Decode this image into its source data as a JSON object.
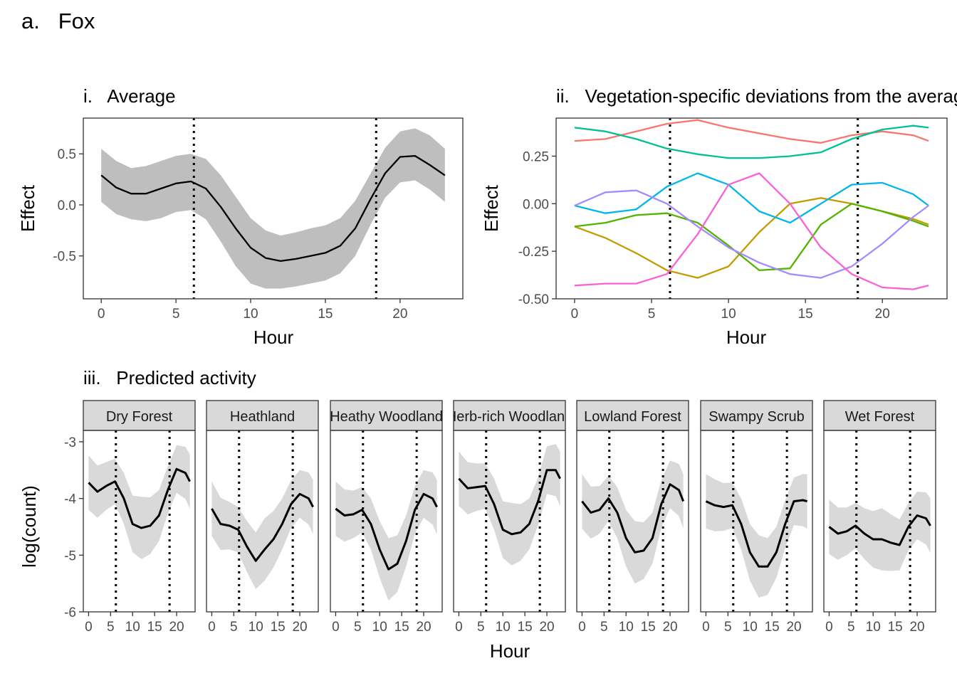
{
  "figure": {
    "title": "a.   Fox"
  },
  "colors": {
    "line": "#000000",
    "ribbon_main": "#bebebe",
    "ribbon_facet": "#d9d9d9",
    "strip_fill": "#d9d9d9",
    "frame": "#333333",
    "vline": "#000000"
  },
  "chart_data": [
    {
      "id": "average",
      "type": "line",
      "title": "i.   Average",
      "xlabel": "Hour",
      "ylabel": "Effect",
      "xlim": [
        -1.2,
        24.2
      ],
      "ylim": [
        -0.92,
        0.85
      ],
      "xticks": [
        0,
        5,
        10,
        15,
        20
      ],
      "xtick_labels": [
        "0",
        "5",
        "10",
        "15",
        "20"
      ],
      "yticks": [
        0.5,
        0.0,
        -0.5
      ],
      "ytick_labels": [
        "0.5",
        "0.0",
        "-0.5"
      ],
      "vlines": [
        6.2,
        18.4
      ],
      "x": [
        0,
        1,
        2,
        3,
        4,
        5,
        6,
        7,
        8,
        9,
        10,
        11,
        12,
        13,
        14,
        15,
        16,
        17,
        18,
        19,
        20,
        21,
        22,
        23
      ],
      "y": [
        0.29,
        0.17,
        0.11,
        0.11,
        0.16,
        0.21,
        0.23,
        0.16,
        -0.02,
        -0.23,
        -0.42,
        -0.52,
        -0.55,
        -0.53,
        -0.5,
        -0.47,
        -0.4,
        -0.23,
        0.05,
        0.31,
        0.47,
        0.48,
        0.39,
        0.29
      ],
      "lower": [
        0.03,
        -0.09,
        -0.14,
        -0.16,
        -0.13,
        -0.07,
        -0.05,
        -0.14,
        -0.36,
        -0.6,
        -0.77,
        -0.82,
        -0.82,
        -0.8,
        -0.77,
        -0.74,
        -0.67,
        -0.5,
        -0.2,
        0.07,
        0.22,
        0.24,
        0.15,
        0.03
      ],
      "upper": [
        0.55,
        0.43,
        0.36,
        0.38,
        0.43,
        0.48,
        0.5,
        0.45,
        0.29,
        0.08,
        -0.13,
        -0.25,
        -0.3,
        -0.27,
        -0.23,
        -0.2,
        -0.13,
        0.04,
        0.3,
        0.56,
        0.72,
        0.75,
        0.68,
        0.55
      ]
    },
    {
      "id": "deviations",
      "type": "line",
      "title": "ii.   Vegetation-specific deviations from the average",
      "xlabel": "Hour",
      "ylabel": "Effect",
      "xlim": [
        -1.2,
        24.2
      ],
      "ylim": [
        -0.5,
        0.45
      ],
      "xticks": [
        0,
        5,
        10,
        15,
        20
      ],
      "xtick_labels": [
        "0",
        "5",
        "10",
        "15",
        "20"
      ],
      "yticks": [
        0.25,
        0.0,
        -0.25,
        -0.5
      ],
      "ytick_labels": [
        "0.25",
        "0.00",
        "-0.25",
        "-0.50"
      ],
      "vlines": [
        6.2,
        18.4
      ],
      "x": [
        0,
        2,
        4,
        6,
        8,
        10,
        12,
        14,
        16,
        18,
        20,
        22,
        23
      ],
      "series": [
        {
          "color": "#f8766d",
          "values": [
            0.33,
            0.34,
            0.38,
            0.42,
            0.44,
            0.4,
            0.37,
            0.34,
            0.32,
            0.36,
            0.38,
            0.36,
            0.33
          ]
        },
        {
          "color": "#c49a00",
          "values": [
            -0.12,
            -0.18,
            -0.26,
            -0.35,
            -0.39,
            -0.33,
            -0.15,
            0.0,
            0.03,
            0.0,
            -0.04,
            -0.08,
            -0.11
          ]
        },
        {
          "color": "#53b400",
          "values": [
            -0.12,
            -0.1,
            -0.06,
            -0.05,
            -0.1,
            -0.22,
            -0.35,
            -0.34,
            -0.11,
            0.0,
            -0.04,
            -0.09,
            -0.12
          ]
        },
        {
          "color": "#00c094",
          "values": [
            0.4,
            0.38,
            0.34,
            0.29,
            0.26,
            0.24,
            0.24,
            0.25,
            0.27,
            0.34,
            0.39,
            0.41,
            0.4
          ]
        },
        {
          "color": "#00b6eb",
          "values": [
            -0.01,
            -0.05,
            -0.03,
            0.09,
            0.16,
            0.1,
            -0.04,
            -0.1,
            0.0,
            0.1,
            0.11,
            0.05,
            -0.01
          ]
        },
        {
          "color": "#a58aff",
          "values": [
            -0.01,
            0.06,
            0.07,
            0.0,
            -0.12,
            -0.23,
            -0.31,
            -0.37,
            -0.39,
            -0.33,
            -0.21,
            -0.07,
            -0.01
          ]
        },
        {
          "color": "#fb61d7",
          "values": [
            -0.43,
            -0.42,
            -0.42,
            -0.37,
            -0.16,
            0.1,
            0.16,
            0.0,
            -0.23,
            -0.37,
            -0.44,
            -0.45,
            -0.43
          ]
        }
      ]
    },
    {
      "id": "predicted",
      "type": "line",
      "title": "iii.   Predicted activity",
      "xlabel": "Hour",
      "ylabel": "log(count)",
      "xlim": [
        -1.2,
        24.2
      ],
      "ylim": [
        -6.0,
        -2.8
      ],
      "xticks": [
        0,
        5,
        10,
        15,
        20
      ],
      "xtick_labels": [
        "0",
        "5",
        "10",
        "15",
        "20"
      ],
      "yticks": [
        -3,
        -4,
        -5,
        -6
      ],
      "ytick_labels": [
        "-3",
        "-4",
        "-5",
        "-6"
      ],
      "vlines": [
        6.2,
        18.4
      ],
      "x": [
        0,
        2,
        4,
        6,
        8,
        10,
        12,
        14,
        16,
        18,
        20,
        22,
        23
      ],
      "band_halfwidth": [
        0.48,
        0.46,
        0.42,
        0.4,
        0.45,
        0.5,
        0.55,
        0.5,
        0.45,
        0.42,
        0.42,
        0.46,
        0.48
      ],
      "facets": [
        {
          "label": "Dry Forest",
          "values": [
            -3.72,
            -3.88,
            -3.78,
            -3.7,
            -4.0,
            -4.45,
            -4.52,
            -4.48,
            -4.3,
            -3.85,
            -3.48,
            -3.55,
            -3.7
          ]
        },
        {
          "label": "Heathland",
          "values": [
            -4.18,
            -4.45,
            -4.48,
            -4.55,
            -4.85,
            -5.1,
            -4.9,
            -4.72,
            -4.45,
            -4.1,
            -3.92,
            -4.0,
            -4.15
          ]
        },
        {
          "label": "Heathy Woodland",
          "values": [
            -4.18,
            -4.3,
            -4.28,
            -4.2,
            -4.45,
            -4.9,
            -5.25,
            -5.15,
            -4.75,
            -4.2,
            -3.92,
            -4.0,
            -4.15
          ]
        },
        {
          "label": "Herb-rich Woodland",
          "values": [
            -3.65,
            -3.82,
            -3.8,
            -3.78,
            -4.1,
            -4.55,
            -4.63,
            -4.6,
            -4.45,
            -4.05,
            -3.5,
            -3.5,
            -3.65
          ]
        },
        {
          "label": "Lowland Forest",
          "values": [
            -4.05,
            -4.25,
            -4.2,
            -4.0,
            -4.25,
            -4.7,
            -4.95,
            -4.92,
            -4.7,
            -4.1,
            -3.75,
            -3.85,
            -4.05
          ]
        },
        {
          "label": "Swampy Scrub",
          "values": [
            -4.05,
            -4.12,
            -4.15,
            -4.12,
            -4.45,
            -4.95,
            -5.2,
            -5.2,
            -4.95,
            -4.45,
            -4.05,
            -4.03,
            -4.05
          ]
        },
        {
          "label": "Wet Forest",
          "values": [
            -4.5,
            -4.62,
            -4.58,
            -4.48,
            -4.62,
            -4.72,
            -4.72,
            -4.78,
            -4.82,
            -4.5,
            -4.3,
            -4.35,
            -4.48
          ]
        }
      ]
    }
  ]
}
